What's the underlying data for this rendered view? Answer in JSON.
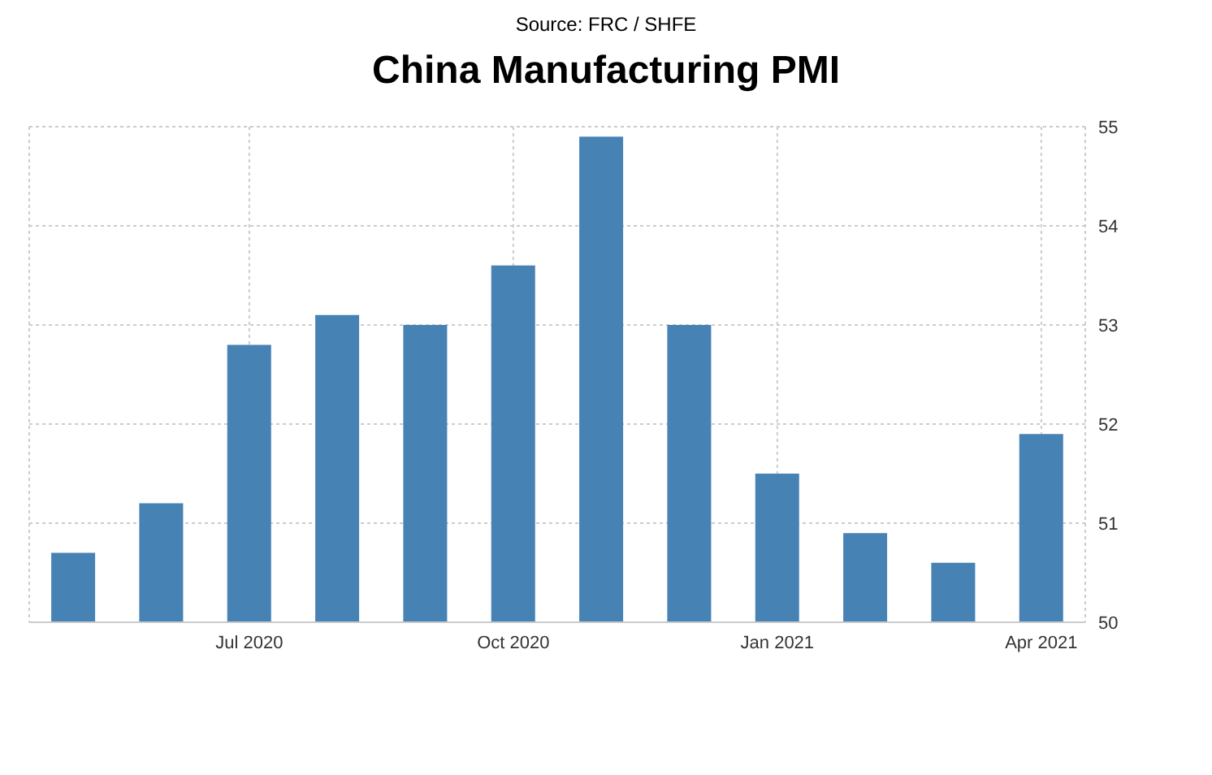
{
  "chart_data": {
    "type": "bar",
    "title": "China Manufacturing PMI",
    "subtitle": "Source: FRC / SHFE",
    "categories": [
      null,
      null,
      "Jul 2020",
      null,
      null,
      "Oct 2020",
      null,
      null,
      "Jan 2021",
      null,
      null,
      "Apr 2021"
    ],
    "values": [
      50.7,
      51.2,
      52.8,
      53.1,
      53.0,
      53.6,
      54.9,
      53.0,
      51.5,
      50.9,
      50.6,
      51.9
    ],
    "color": "#4682b4",
    "ylim": [
      50,
      55
    ],
    "yticks": [
      50,
      51,
      52,
      53,
      54,
      55
    ],
    "grid": true
  }
}
